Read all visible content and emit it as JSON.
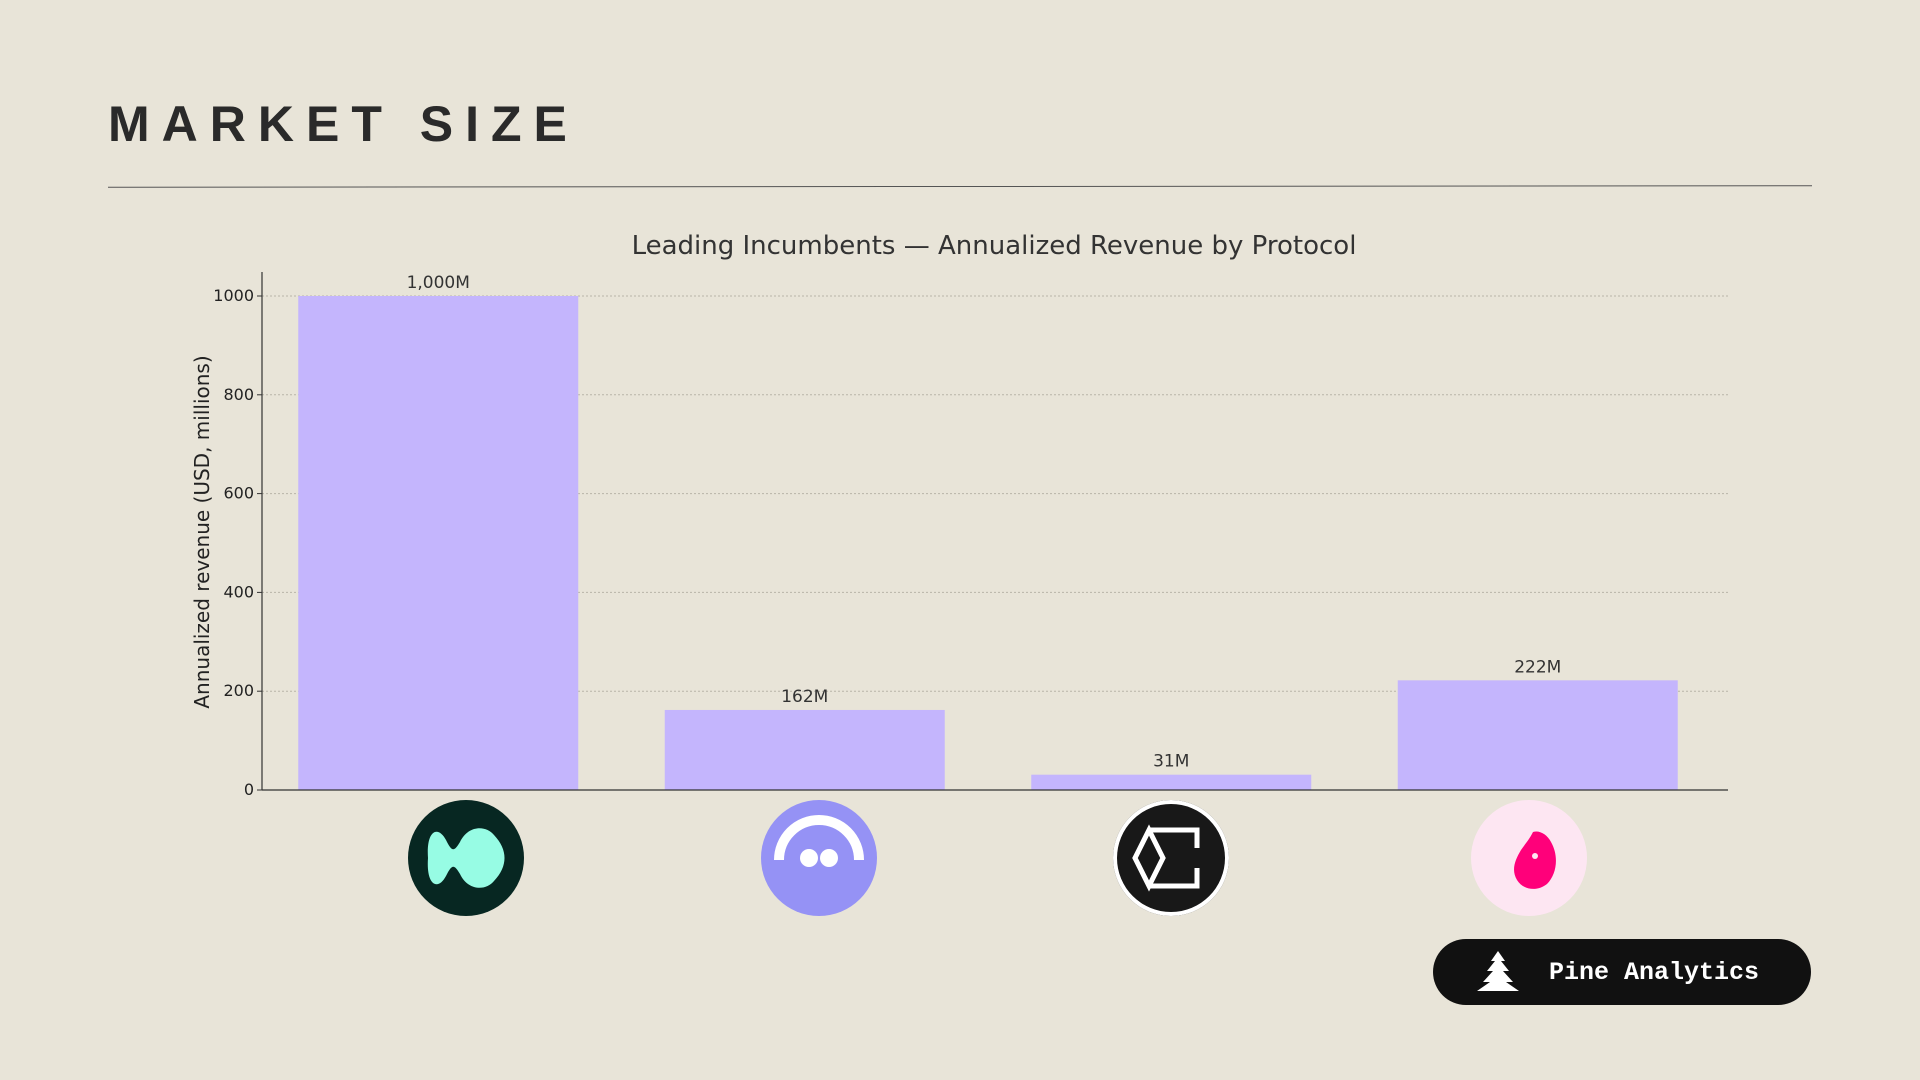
{
  "header": {
    "title": "MARKET SIZE"
  },
  "chart_data": {
    "type": "bar",
    "title": "Leading Incumbents — Annualized Revenue by Protocol",
    "xlabel": "",
    "ylabel": "Annualized revenue (USD, millions)",
    "ylim": [
      0,
      1050
    ],
    "yticks": [
      0,
      200,
      400,
      600,
      800,
      1000
    ],
    "grid": true,
    "categories": [
      "Hyperliquid",
      "Pump.fun",
      "Ethena",
      "Uniswap"
    ],
    "values": [
      1000,
      162,
      31,
      222
    ],
    "data_labels": [
      "1,000M",
      "162M",
      "31M",
      "222M"
    ],
    "bar_color": "#c4b5fd"
  },
  "logos": [
    {
      "icon": "hyperliquid-logo-icon",
      "bg": "#072722",
      "fg": "#97fce4"
    },
    {
      "icon": "pump-logo-icon",
      "bg": "#9592f5",
      "fg": "#ffffff"
    },
    {
      "icon": "ethena-logo-icon",
      "bg": "#181818",
      "fg": "#ffffff"
    },
    {
      "icon": "uniswap-logo-icon",
      "bg": "#fde6f2",
      "fg": "#ff007a"
    }
  ],
  "badge": {
    "label": "Pine Analytics"
  }
}
